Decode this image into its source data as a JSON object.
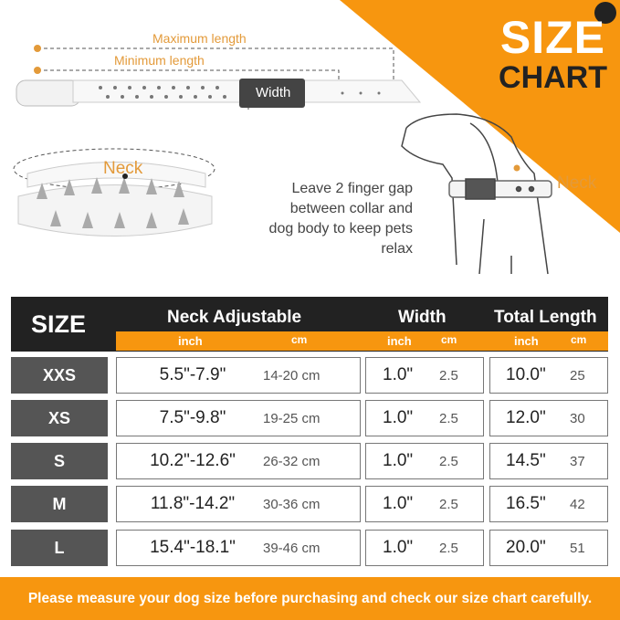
{
  "title": {
    "line1": "SIZE",
    "line2": "CHART"
  },
  "diagram": {
    "max_length": "Maximum length",
    "min_length": "Minimum length",
    "width": "Width",
    "neck_left": "Neck",
    "neck_right": "Neck",
    "gap_note": "Leave 2 finger gap between collar and dog body to keep pets relax"
  },
  "table": {
    "headers": {
      "size": "SIZE",
      "neck": "Neck Adjustable",
      "width": "Width",
      "total": "Total Length"
    },
    "units": {
      "inch": "inch",
      "cm": "cm"
    },
    "rows": [
      {
        "size": "XXS",
        "neck_in": "5.5\"-7.9\"",
        "neck_cm": "14-20 cm",
        "width_in": "1.0\"",
        "width_cm": "2.5",
        "total_in": "10.0\"",
        "total_cm": "25"
      },
      {
        "size": "XS",
        "neck_in": "7.5\"-9.8\"",
        "neck_cm": "19-25 cm",
        "width_in": "1.0\"",
        "width_cm": "2.5",
        "total_in": "12.0\"",
        "total_cm": "30"
      },
      {
        "size": "S",
        "neck_in": "10.2\"-12.6\"",
        "neck_cm": "26-32 cm",
        "width_in": "1.0\"",
        "width_cm": "2.5",
        "total_in": "14.5\"",
        "total_cm": "37"
      },
      {
        "size": "M",
        "neck_in": "11.8\"-14.2\"",
        "neck_cm": "30-36 cm",
        "width_in": "1.0\"",
        "width_cm": "2.5",
        "total_in": "16.5\"",
        "total_cm": "42"
      },
      {
        "size": "L",
        "neck_in": "15.4\"-18.1\"",
        "neck_cm": "39-46 cm",
        "width_in": "1.0\"",
        "width_cm": "2.5",
        "total_in": "20.0\"",
        "total_cm": "51"
      }
    ]
  },
  "footer": "Please measure your dog size before purchasing and check our size chart carefully.",
  "colors": {
    "accent": "#f7960f",
    "dark": "#222222",
    "size_cell": "#555555"
  }
}
